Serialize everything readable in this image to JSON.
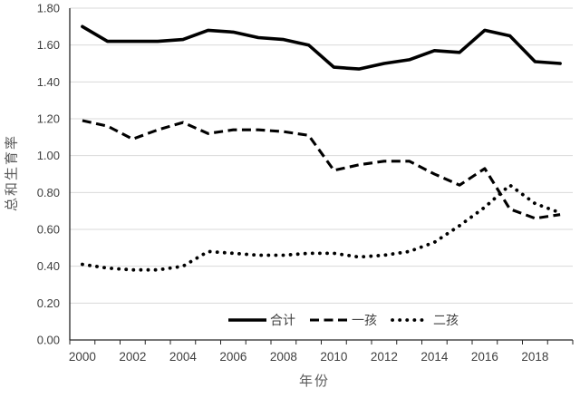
{
  "chart_data": {
    "type": "line",
    "title": "",
    "xlabel": "年份",
    "ylabel": "总和生育率",
    "x": [
      2000,
      2001,
      2002,
      2003,
      2004,
      2005,
      2006,
      2007,
      2008,
      2009,
      2010,
      2011,
      2012,
      2013,
      2014,
      2015,
      2016,
      2017,
      2018,
      2019
    ],
    "xtick_labels": [
      "2000",
      "2002",
      "2004",
      "2006",
      "2008",
      "2010",
      "2012",
      "2014",
      "2016",
      "2018"
    ],
    "xtick_label_every": 2,
    "ylim": [
      0.0,
      1.8
    ],
    "ytick_step": 0.2,
    "ytick_labels": [
      "0.00",
      "0.20",
      "0.40",
      "0.60",
      "0.80",
      "1.00",
      "1.20",
      "1.40",
      "1.60",
      "1.80"
    ],
    "grid": true,
    "legend_position": "bottom-center-inside",
    "series": [
      {
        "name": "合计",
        "style": "solid",
        "color": "#000000",
        "values": [
          1.7,
          1.62,
          1.62,
          1.62,
          1.63,
          1.68,
          1.67,
          1.64,
          1.63,
          1.6,
          1.48,
          1.47,
          1.5,
          1.52,
          1.57,
          1.56,
          1.68,
          1.65,
          1.51,
          1.5
        ]
      },
      {
        "name": "一孩",
        "style": "dashed",
        "color": "#000000",
        "values": [
          1.19,
          1.16,
          1.09,
          1.14,
          1.18,
          1.12,
          1.14,
          1.14,
          1.13,
          1.11,
          0.92,
          0.95,
          0.97,
          0.97,
          0.9,
          0.84,
          0.93,
          0.71,
          0.66,
          0.68
        ]
      },
      {
        "name": "二孩",
        "style": "dotted",
        "color": "#000000",
        "values": [
          0.41,
          0.39,
          0.38,
          0.38,
          0.4,
          0.48,
          0.47,
          0.46,
          0.46,
          0.47,
          0.47,
          0.45,
          0.46,
          0.48,
          0.53,
          0.62,
          0.72,
          0.84,
          0.74,
          0.69
        ]
      }
    ],
    "colors": {
      "background": "#ffffff",
      "grid": "#d9d9d9",
      "axis": "#262626",
      "tick_label": "#404040",
      "axis_title": "#595959",
      "legend_label": "#404040"
    }
  }
}
